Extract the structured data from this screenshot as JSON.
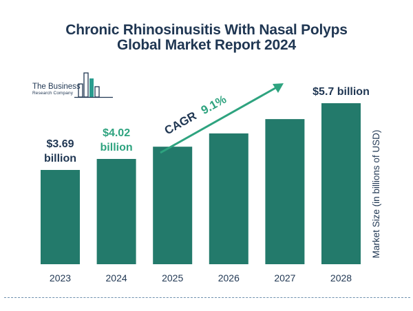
{
  "header": {
    "title_line1": "Chronic Rhinosinusitis With Nasal Polyps",
    "title_line2": "Global Market Report 2024"
  },
  "logo": {
    "line1": "The Business",
    "line2": "Research Company",
    "icon": "bar-chart-logo-icon",
    "color": "#1f3652",
    "accent": "#2a9d8f"
  },
  "colors": {
    "bar": "#237a6b",
    "highlight_text": "#2ea37f",
    "label_text": "#1f3652",
    "arrow": "#2ea37f"
  },
  "chart_data": {
    "type": "bar",
    "categories": [
      "2023",
      "2024",
      "2025",
      "2026",
      "2027",
      "2028"
    ],
    "values": [
      3.69,
      4.02,
      4.39,
      4.79,
      5.22,
      5.7
    ],
    "ylabel": "Market Size (in billions of USD)",
    "data_labels": [
      {
        "index": 0,
        "line1": "$3.69",
        "line2": "billion",
        "style": "dark"
      },
      {
        "index": 1,
        "line1": "$4.02",
        "line2": "billion",
        "style": "green"
      },
      {
        "index": 5,
        "line1": "$5.7 billion",
        "line2": "",
        "style": "dark"
      }
    ],
    "annotation": {
      "prefix": "CAGR",
      "value": "9.1%"
    },
    "grid": false,
    "legend": "none"
  }
}
